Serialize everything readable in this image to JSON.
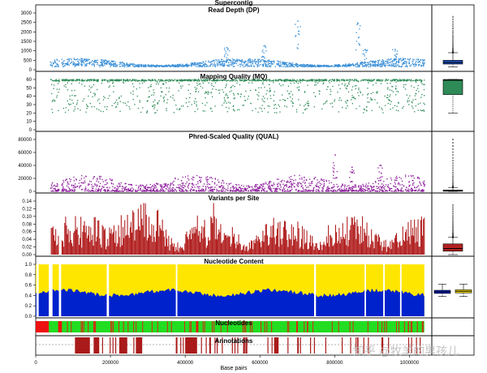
{
  "figure": {
    "title": "Supercontig",
    "xlabel": "Base pairs",
    "watermark": "知乎 @牧羊的男孩儿"
  },
  "colors": {
    "dp": "#3a8fd8",
    "mq": "#2e8b57",
    "qual": "#8b1a9b",
    "variants": "#b22222",
    "nuc_top": "#ffe600",
    "nuc_bottom": "#0022cc",
    "nuc_white": "#ffffff",
    "nucleotides_green": "#22dd22",
    "nucleotides_red": "#ee1111",
    "annotations": "#aa1a1a",
    "box_dp": "#1f4fb8",
    "box_mq": "#2e8b57",
    "box_variants": "#b22222",
    "box_nuc_blue": "#0022cc",
    "box_nuc_yellow": "#ffe600"
  },
  "chart_data": [
    {
      "type": "scatter",
      "id": "dp",
      "title": "Read Depth (DP)",
      "ylim": [
        0,
        3000
      ],
      "yticks": [
        "0",
        "500",
        "1000",
        "1500",
        "2000",
        "2500",
        "3000"
      ],
      "xlim": [
        0,
        1060000
      ],
      "xticks": [
        "0",
        "200000",
        "400000",
        "600000",
        "800000",
        "1000000"
      ],
      "typical_range": [
        150,
        600
      ],
      "peaks": [
        {
          "x": 510000,
          "y": 1200
        },
        {
          "x": 610000,
          "y": 1300
        },
        {
          "x": 700000,
          "y": 2600
        },
        {
          "x": 860000,
          "y": 2500
        },
        {
          "x": 880000,
          "y": 1100
        },
        {
          "x": 960000,
          "y": 1100
        }
      ],
      "boxplot": {
        "min": 150,
        "q1": 300,
        "median": 380,
        "q3": 500,
        "max": 900,
        "outliers_max": 2800
      }
    },
    {
      "type": "scatter",
      "id": "mq",
      "title": "Mapping Quality (MQ)",
      "ylim": [
        0,
        60
      ],
      "yticks": [
        "0",
        "10",
        "20",
        "30",
        "40",
        "50",
        "60"
      ],
      "typical_range": [
        20,
        60
      ],
      "boxplot": {
        "min": 20,
        "q1": 42,
        "median": 59,
        "q3": 60,
        "max": 60
      }
    },
    {
      "type": "scatter",
      "id": "qual",
      "title": "Phred-Scaled Quality (QUAL)",
      "ylim": [
        0,
        80000
      ],
      "yticks": [
        "0",
        "20000",
        "40000",
        "60000",
        "80000"
      ],
      "typical_range": [
        0,
        25000
      ],
      "peaks": [
        {
          "x": 800000,
          "y": 57000
        },
        {
          "x": 845000,
          "y": 38000
        },
        {
          "x": 920000,
          "y": 41000
        }
      ],
      "boxplot": {
        "min": 0,
        "q1": 200,
        "median": 800,
        "q3": 2000,
        "max": 6000,
        "outliers_max": 80000
      }
    },
    {
      "type": "bar",
      "id": "variants",
      "title": "Variants per Site",
      "ylim": [
        0,
        0.14
      ],
      "yticks": [
        "0.00",
        "0.02",
        "0.04",
        "0.06",
        "0.08",
        "0.10",
        "0.12",
        "0.14"
      ],
      "typical_range": [
        0.01,
        0.12
      ],
      "boxplot": {
        "min": 0.0,
        "q1": 0.009,
        "median": 0.016,
        "q3": 0.028,
        "max": 0.045,
        "outliers_max": 0.13
      }
    },
    {
      "type": "area",
      "id": "nucleotide_content",
      "title": "Nucleotide Content",
      "ylim": [
        0,
        1.0
      ],
      "yticks": [
        "0.0",
        "0.2",
        "0.4",
        "0.6",
        "0.8",
        "1.0"
      ],
      "typical_gc_fraction": 0.45,
      "boxplot_blue": {
        "min": 0.38,
        "q1": 0.44,
        "median": 0.47,
        "q3": 0.5,
        "max": 0.62
      },
      "boxplot_yellow": {
        "min": 0.38,
        "q1": 0.45,
        "median": 0.48,
        "q3": 0.51,
        "max": 0.62
      }
    },
    {
      "type": "heatmap",
      "id": "nucleotides",
      "title": "Nucleotides",
      "red_regions": [
        [
          0,
          35000
        ],
        [
          60000,
          70000
        ]
      ]
    },
    {
      "type": "heatmap",
      "id": "annotations",
      "title": "Annotations",
      "blocks": [
        [
          105000,
          145000
        ],
        [
          155000,
          170000
        ],
        [
          225000,
          245000
        ],
        [
          270000,
          285000
        ],
        [
          400000,
          430000
        ],
        [
          555000,
          560000
        ],
        [
          640000,
          650000
        ]
      ]
    }
  ]
}
